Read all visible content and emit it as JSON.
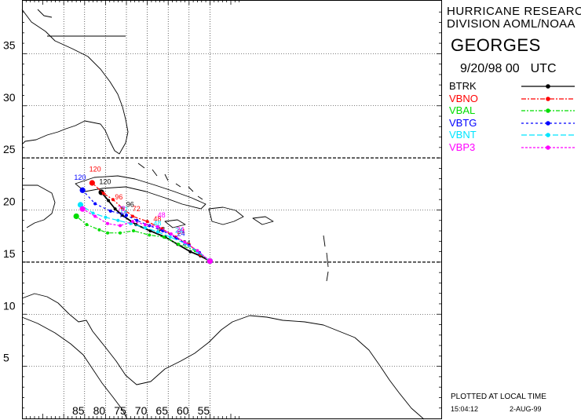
{
  "header": {
    "org_line1": "HURRICANE RESEARCH",
    "org_line2": "DIVISION AOML/NOAA",
    "storm_name": "GEORGES",
    "datetime": "9/20/98 00",
    "timezone": "UTC"
  },
  "legend": [
    {
      "label": "BTRK",
      "color": "#000000",
      "dash": ""
    },
    {
      "label": "VBNO",
      "color": "#ff0000",
      "dash": "6,2,2,2"
    },
    {
      "label": "VBAL",
      "color": "#00dd00",
      "dash": "5,2,2,2"
    },
    {
      "label": "VBTG",
      "color": "#0000ff",
      "dash": "3,3"
    },
    {
      "label": "VBNT",
      "color": "#00e5ff",
      "dash": "7,3"
    },
    {
      "label": "VBP3",
      "color": "#ff00ff",
      "dash": "3,2"
    }
  ],
  "footer": {
    "plotted_note": "PLOTTED AT LOCAL TIME",
    "run_time": "15:04:12",
    "run_date": "2-AUG-99"
  },
  "map": {
    "lon_range_deg_west": [
      100,
      47
    ],
    "lat_range_deg_north": [
      0,
      40
    ],
    "lon_ticks": [
      {
        "value": 85,
        "label": "85"
      },
      {
        "value": 80,
        "label": "80"
      },
      {
        "value": 75,
        "label": "75"
      },
      {
        "value": 70,
        "label": "70"
      },
      {
        "value": 65,
        "label": "65"
      },
      {
        "value": 60,
        "label": "60"
      },
      {
        "value": 55,
        "label": "55"
      }
    ],
    "lat_ticks": [
      {
        "value": 35,
        "label": "35"
      },
      {
        "value": 30,
        "label": "30"
      },
      {
        "value": 25,
        "label": "25"
      },
      {
        "value": 20,
        "label": "20"
      },
      {
        "value": 15,
        "label": "15"
      },
      {
        "value": 10,
        "label": "10"
      },
      {
        "value": 5,
        "label": "5"
      }
    ],
    "emphasized_lats": [
      15,
      25
    ]
  },
  "chart_data": {
    "type": "scatter",
    "x_units": "degrees west longitude",
    "y_units": "degrees north latitude",
    "series": [
      {
        "name": "BTRK",
        "color": "#000000",
        "points": [
          [
            55.0,
            15.1
          ],
          [
            57.3,
            15.6
          ],
          [
            59.7,
            16.0
          ],
          [
            62.7,
            16.7
          ],
          [
            65.7,
            17.4
          ],
          [
            69.3,
            18.0
          ],
          [
            72.7,
            18.6
          ],
          [
            76.0,
            19.5
          ],
          [
            77.7,
            20.1
          ],
          [
            79.3,
            20.9
          ],
          [
            81.0,
            21.7
          ]
        ],
        "labels": [
          {
            "x": 60.6,
            "y": 16.6,
            "text": "24"
          },
          {
            "x": 66.7,
            "y": 17.9,
            "text": "48"
          },
          {
            "x": 74.1,
            "y": 20.3,
            "text": "96"
          },
          {
            "x": 80.1,
            "y": 22.5,
            "text": "120"
          }
        ]
      },
      {
        "name": "VBNO",
        "color": "#ff0000",
        "points": [
          [
            55.0,
            15.1
          ],
          [
            57.3,
            15.7
          ],
          [
            60.0,
            16.7
          ],
          [
            63.2,
            17.4
          ],
          [
            66.5,
            18.2
          ],
          [
            70.0,
            18.9
          ],
          [
            73.5,
            19.4
          ],
          [
            76.0,
            20.2
          ],
          [
            78.2,
            21.0
          ],
          [
            80.5,
            21.6
          ],
          [
            83.2,
            22.6
          ]
        ],
        "labels": [
          {
            "x": 61.9,
            "y": 17.7,
            "text": "24"
          },
          {
            "x": 67.6,
            "y": 18.9,
            "text": "48"
          },
          {
            "x": 72.6,
            "y": 19.9,
            "text": "72"
          },
          {
            "x": 76.8,
            "y": 21.0,
            "text": "96"
          },
          {
            "x": 82.5,
            "y": 23.7,
            "text": "120"
          }
        ]
      },
      {
        "name": "VBAL",
        "color": "#00dd00",
        "points": [
          [
            55.0,
            15.1
          ],
          [
            58.5,
            16.1
          ],
          [
            62.5,
            16.7
          ],
          [
            66.0,
            17.4
          ],
          [
            69.5,
            17.6
          ],
          [
            73.3,
            18.0
          ],
          [
            76.5,
            17.8
          ],
          [
            79.5,
            17.8
          ],
          [
            81.5,
            18.1
          ],
          [
            84.5,
            18.6
          ],
          [
            87.0,
            19.4
          ]
        ],
        "labels": []
      },
      {
        "name": "VBTG",
        "color": "#0000ff",
        "points": [
          [
            55.0,
            15.1
          ],
          [
            57.5,
            15.9
          ],
          [
            60.0,
            16.6
          ],
          [
            63.0,
            17.3
          ],
          [
            66.3,
            18.0
          ],
          [
            69.5,
            18.5
          ],
          [
            72.5,
            19.0
          ],
          [
            75.0,
            19.5
          ],
          [
            78.8,
            19.9
          ],
          [
            82.5,
            20.6
          ],
          [
            85.5,
            21.9
          ]
        ],
        "labels": [
          {
            "x": 61.9,
            "y": 17.5,
            "text": "24"
          },
          {
            "x": 75.8,
            "y": 19.3,
            "text": "72"
          },
          {
            "x": 86.1,
            "y": 22.9,
            "text": "120"
          }
        ]
      },
      {
        "name": "VBNT",
        "color": "#00e5ff",
        "points": [
          [
            55.0,
            15.1
          ],
          [
            58.0,
            16.0
          ],
          [
            61.0,
            16.8
          ],
          [
            64.5,
            17.4
          ],
          [
            67.5,
            17.9
          ],
          [
            70.5,
            18.3
          ],
          [
            74.0,
            18.7
          ],
          [
            77.0,
            19.0
          ],
          [
            80.0,
            19.3
          ],
          [
            83.0,
            19.7
          ],
          [
            86.0,
            20.5
          ]
        ],
        "labels": [
          {
            "x": 62.4,
            "y": 17.8,
            "text": "24"
          },
          {
            "x": 67.6,
            "y": 18.5,
            "text": "48"
          },
          {
            "x": 75.6,
            "y": 19.8,
            "text": "72"
          }
        ]
      },
      {
        "name": "VBP3",
        "color": "#ff00ff",
        "points": [
          [
            55.0,
            15.1
          ],
          [
            58.0,
            16.1
          ],
          [
            61.0,
            16.9
          ],
          [
            64.3,
            17.7
          ],
          [
            67.5,
            18.4
          ],
          [
            70.5,
            18.6
          ],
          [
            73.5,
            18.9
          ],
          [
            76.5,
            18.5
          ],
          [
            79.5,
            18.7
          ],
          [
            82.5,
            19.4
          ],
          [
            85.5,
            20.1
          ]
        ],
        "labels": [
          {
            "x": 62.1,
            "y": 17.9,
            "text": "24"
          },
          {
            "x": 66.6,
            "y": 19.3,
            "text": "48"
          },
          {
            "x": 76.2,
            "y": 19.9,
            "text": "72"
          }
        ]
      }
    ]
  }
}
